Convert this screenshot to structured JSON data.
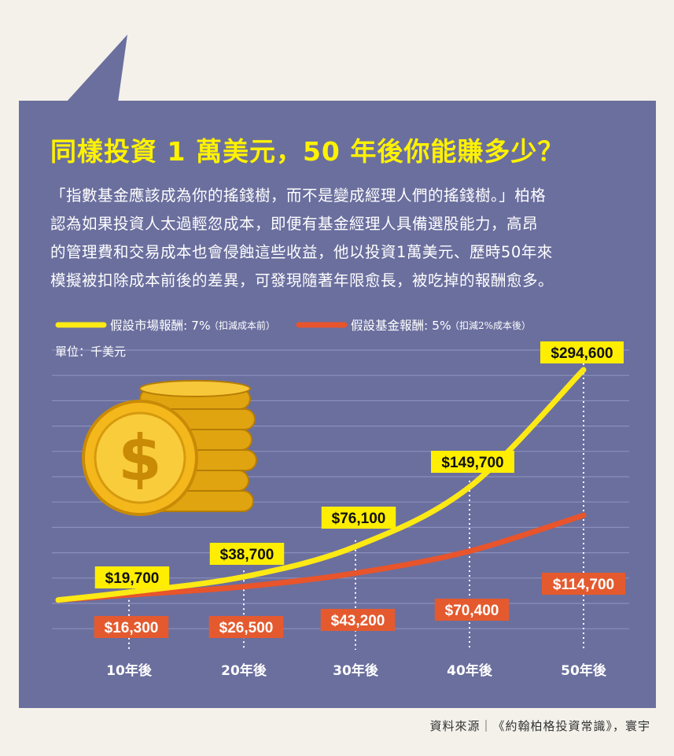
{
  "title": "同樣投資 1 萬美元，50 年後你能賺多少？",
  "paragraph_lines": [
    "「指數基金應該成為你的搖錢樹，而不是變成經理人們的搖錢樹。」柏格",
    "認為如果投資人太過輕忽成本，即便有基金經理人具備選股能力，高昂",
    "的管理費和交易成本也會侵蝕這些收益，他以投資1萬美元、歷時50年來",
    "模擬被扣除成本前後的差異，可發現隨著年限愈長，被吃掉的報酬愈多。"
  ],
  "legend": {
    "market_label": "假設市場報酬: 7%",
    "market_note": "（扣減成本前）",
    "fund_label": "假設基金報酬: 5%",
    "fund_note": "（扣減2%成本後）"
  },
  "unit_label": "單位：千美元",
  "source": "資料來源｜《約翰柏格投資常識》，寰宇",
  "colors": {
    "panel": "#6b6f9e",
    "market": "#fde914",
    "fund": "#e8542b",
    "label_yellow": "#ffee00",
    "label_orange": "#e45a2e"
  },
  "chart_data": {
    "type": "line",
    "categories": [
      "10年後",
      "20年後",
      "30年後",
      "40年後",
      "50年後"
    ],
    "series": [
      {
        "name": "假設市場報酬: 7%",
        "values": [
          19700,
          38700,
          76100,
          149700,
          294600
        ],
        "labels": [
          "$19,700",
          "$38,700",
          "$76,100",
          "$149,700",
          "$294,600"
        ]
      },
      {
        "name": "假設基金報酬: 5%",
        "values": [
          16300,
          26500,
          43200,
          70400,
          114700
        ],
        "labels": [
          "$16,300",
          "$26,500",
          "$43,200",
          "$70,400",
          "$114,700"
        ]
      }
    ]
  }
}
